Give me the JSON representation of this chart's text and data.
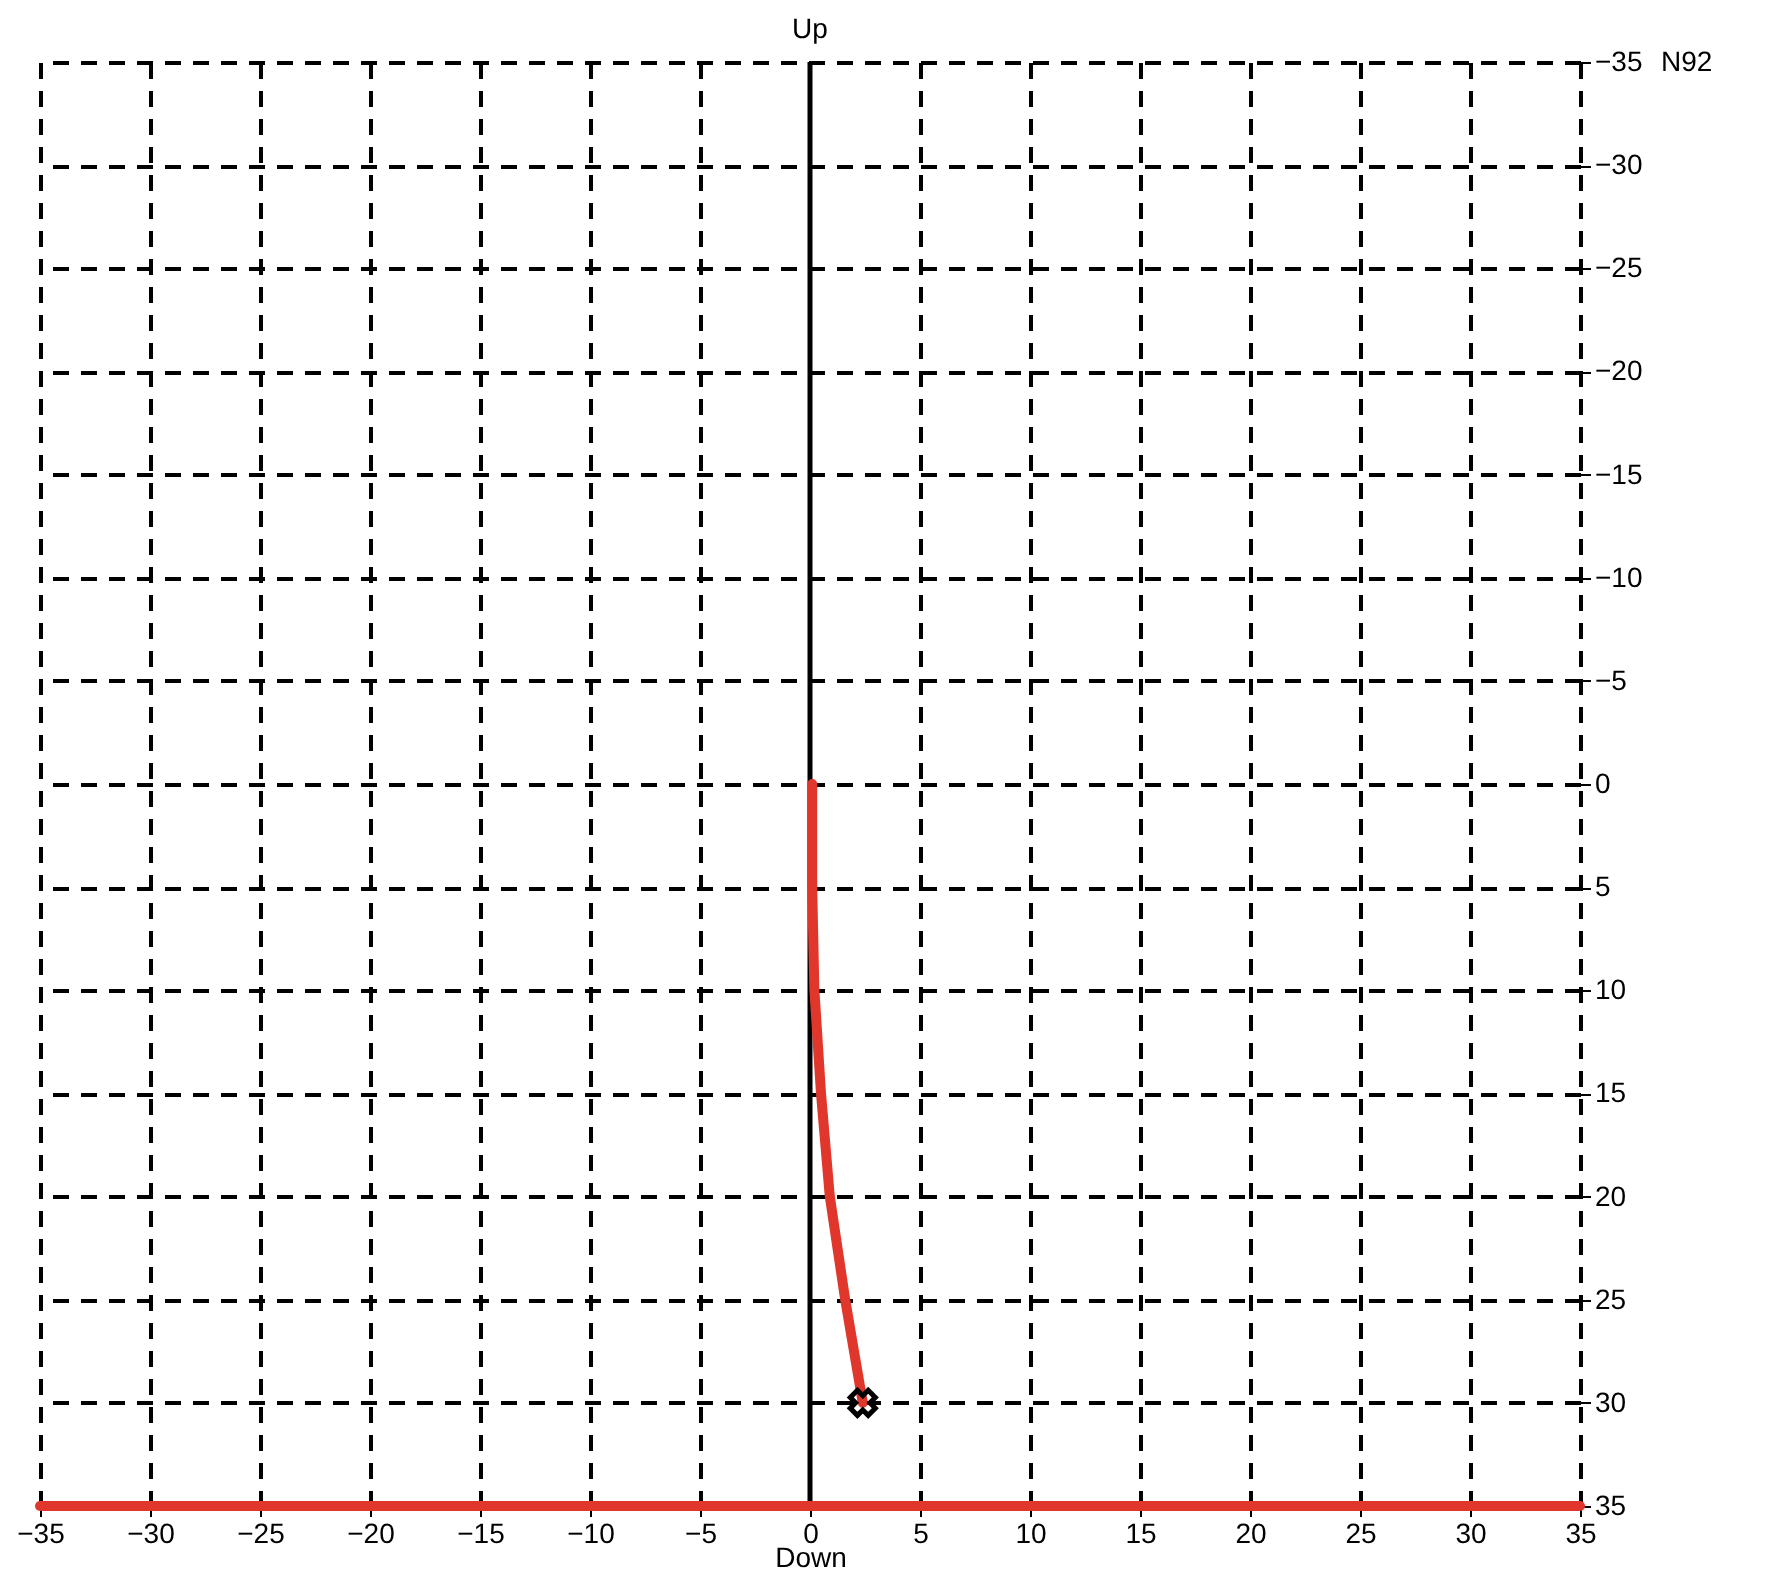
{
  "chart_data": {
    "type": "line",
    "title": "Up",
    "xlabel": "Down",
    "ylabel": "N92",
    "xlim": [
      -35,
      35
    ],
    "xticks": [
      -35,
      -30,
      -25,
      -20,
      -15,
      -10,
      -5,
      0,
      5,
      10,
      15,
      20,
      25,
      30,
      35
    ],
    "ylim": [
      35,
      -35
    ],
    "yticks": [
      -35,
      -30,
      -25,
      -20,
      -15,
      -10,
      -5,
      0,
      5,
      10,
      15,
      20,
      25,
      30,
      35
    ],
    "grid": true,
    "line_style": "solid",
    "marker": "none",
    "series": [
      {
        "type": "line",
        "color": "#e0362c",
        "x": [
          0.1,
          0.1,
          0.2,
          0.5,
          0.9,
          1.6,
          2.4
        ],
        "values": [
          0,
          5,
          10,
          15,
          20,
          25,
          30
        ]
      },
      {
        "type": "line",
        "color": "#e0362c",
        "x": [
          -35,
          35
        ],
        "values": [
          35,
          35
        ]
      },
      {
        "type": "scatter",
        "marker": "cross",
        "color": "#000000",
        "x": [
          2.4
        ],
        "values": [
          30
        ]
      }
    ],
    "ref_lines": [
      {
        "axis": "x",
        "value": 0,
        "color": "#000000"
      }
    ]
  }
}
